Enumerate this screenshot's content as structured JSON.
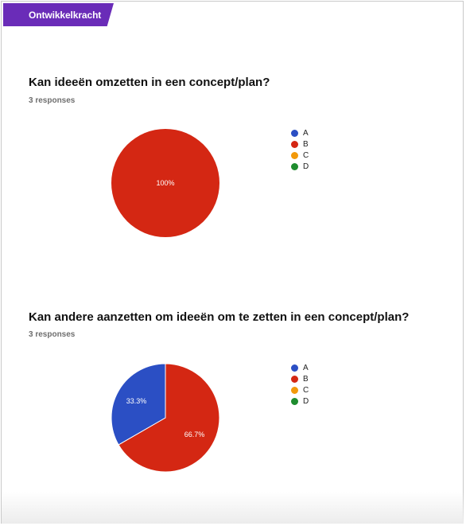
{
  "header": {
    "section_label": "Ontwikkelkracht",
    "color": "#6a2cb8"
  },
  "legend_colors": {
    "A": "#2b4fc4",
    "B": "#d42713",
    "C": "#f2990a",
    "D": "#1e8c2e"
  },
  "questions": [
    {
      "title": "Kan ideeën omzetten in een concept/plan?",
      "responses": "3 responses"
    },
    {
      "title": "Kan andere aanzetten om ideeën om te zetten in een concept/plan?",
      "responses": "3 responses"
    }
  ],
  "chart_data": [
    {
      "type": "pie",
      "title": "Kan ideeën omzetten in een concept/plan?",
      "legend": [
        "A",
        "B",
        "C",
        "D"
      ],
      "legend_position": "right",
      "slices": [
        {
          "label": "A",
          "value": 0
        },
        {
          "label": "B",
          "value": 100.0,
          "display": "100%"
        },
        {
          "label": "C",
          "value": 0
        },
        {
          "label": "D",
          "value": 0
        }
      ]
    },
    {
      "type": "pie",
      "title": "Kan andere aanzetten om ideeën om te zetten in een concept/plan?",
      "legend": [
        "A",
        "B",
        "C",
        "D"
      ],
      "legend_position": "right",
      "slices": [
        {
          "label": "A",
          "value": 33.3,
          "display": "33.3%"
        },
        {
          "label": "B",
          "value": 66.7,
          "display": "66.7%"
        },
        {
          "label": "C",
          "value": 0
        },
        {
          "label": "D",
          "value": 0
        }
      ]
    }
  ]
}
